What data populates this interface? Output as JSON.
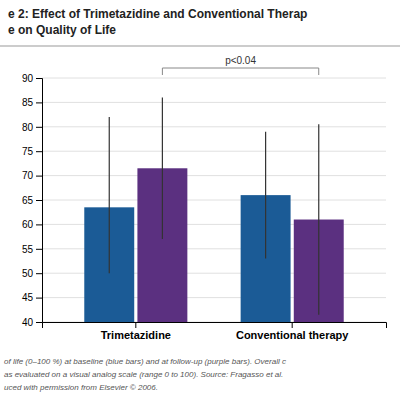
{
  "chart_data": {
    "type": "bar",
    "title": [
      "e 2: Effect of Trimetazidine and Conventional Therap",
      "e on Quality of Life"
    ],
    "caption": [
      "of life (0–100 %) at baseline (blue bars) and at follow-up (purple bars). Overall c",
      "as evaluated on a visual analog scale (range 0 to 100). Source: Fragasso et al.",
      "uced with permission from Elsevier © 2006."
    ],
    "annotations": [
      "p<0.04"
    ],
    "categories": [
      "Trimetazidine",
      "Conventional therapy"
    ],
    "series": [
      {
        "color": "#1b5b96",
        "values": [
          63.5,
          66.0
        ],
        "errors_up": [
          18.5,
          13.0
        ],
        "errors_down": [
          13.5,
          13.0
        ]
      },
      {
        "color": "#5b3080",
        "values": [
          71.5,
          61.0
        ],
        "errors_up": [
          14.5,
          19.5
        ],
        "errors_down": [
          14.5,
          19.5
        ]
      }
    ],
    "ylim": [
      40,
      90
    ],
    "yticks": [
      40,
      45,
      50,
      55,
      60,
      65,
      70,
      75,
      80,
      85,
      90
    ],
    "grid": true
  }
}
